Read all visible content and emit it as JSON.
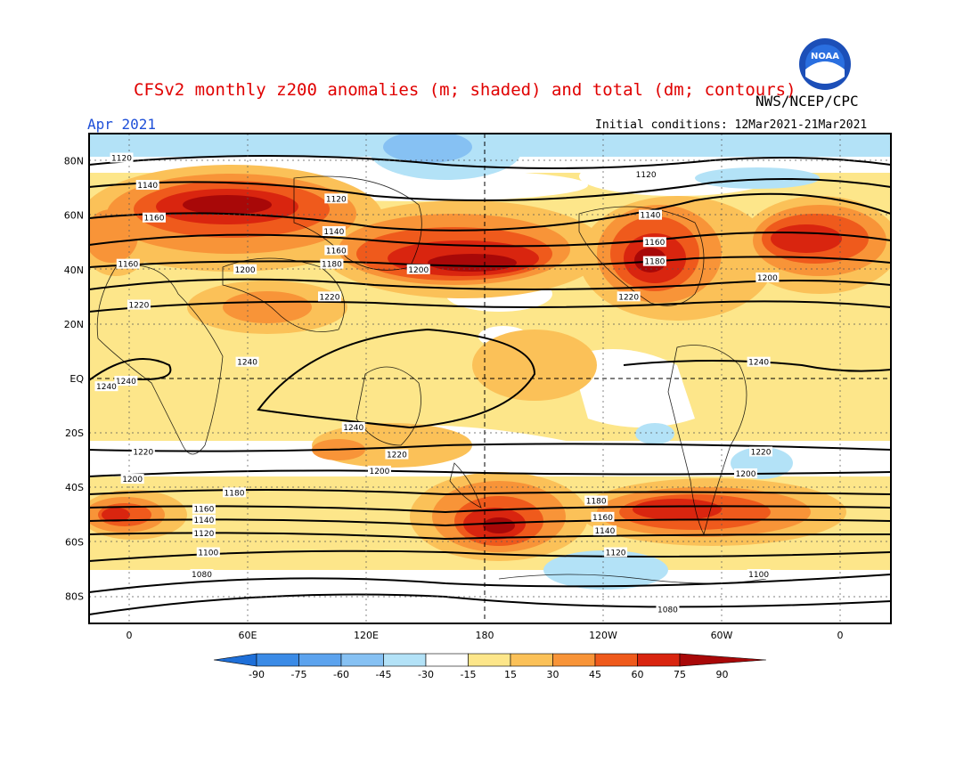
{
  "header": {
    "title": "CFSv2 monthly z200 anomalies (m; shaded) and total (dm; contours)",
    "agency": "NWS/NCEP/CPC",
    "month": "Apr 2021",
    "initial_conditions": "Initial conditions: 12Mar2021-21Mar2021"
  },
  "logo": {
    "name": "noaa-logo",
    "text": "NOAA"
  },
  "map": {
    "lat_labels": [
      "80N",
      "60N",
      "40N",
      "20N",
      "EQ",
      "20S",
      "40S",
      "60S",
      "80S"
    ],
    "lon_labels": [
      "0",
      "60E",
      "120E",
      "180",
      "120W",
      "60W",
      "0"
    ],
    "contour_labels": [
      {
        "v": "1120",
        "lon": 0,
        "lat": 81
      },
      {
        "v": "1140",
        "lon": 12,
        "lat": 71
      },
      {
        "v": "1160",
        "lon": 15,
        "lat": 59
      },
      {
        "v": "1160",
        "lon": 3,
        "lat": 42
      },
      {
        "v": "1200",
        "lon": 57,
        "lat": 40
      },
      {
        "v": "1220",
        "lon": 8,
        "lat": 27
      },
      {
        "v": "1240",
        "lon": 58,
        "lat": 6
      },
      {
        "v": "1240",
        "lon": 2,
        "lat": -1
      },
      {
        "v": "1120",
        "lon": 99,
        "lat": 66
      },
      {
        "v": "1140",
        "lon": 98,
        "lat": 54
      },
      {
        "v": "1160",
        "lon": 99,
        "lat": 47
      },
      {
        "v": "1180",
        "lon": 97,
        "lat": 42
      },
      {
        "v": "1220",
        "lon": 96,
        "lat": 30
      },
      {
        "v": "1200",
        "lon": 137,
        "lat": 40
      },
      {
        "v": "1240",
        "lon": 107,
        "lat": -18
      },
      {
        "v": "1120",
        "lon": -118,
        "lat": 75
      },
      {
        "v": "1140",
        "lon": -116,
        "lat": 60
      },
      {
        "v": "1160",
        "lon": -114,
        "lat": 50
      },
      {
        "v": "1180",
        "lon": -114,
        "lat": 43
      },
      {
        "v": "1200",
        "lon": -62,
        "lat": 37
      },
      {
        "v": "1220",
        "lon": -126,
        "lat": 30
      },
      {
        "v": "1240",
        "lon": -66,
        "lat": 6
      },
      {
        "v": "1240",
        "lon": -7,
        "lat": -3
      },
      {
        "v": "1220",
        "lon": 10,
        "lat": -27
      },
      {
        "v": "1200",
        "lon": 5,
        "lat": -37
      },
      {
        "v": "1180",
        "lon": 52,
        "lat": -42
      },
      {
        "v": "1160",
        "lon": 38,
        "lat": -48
      },
      {
        "v": "1140",
        "lon": 38,
        "lat": -52
      },
      {
        "v": "1120",
        "lon": 38,
        "lat": -57
      },
      {
        "v": "1100",
        "lon": 40,
        "lat": -64
      },
      {
        "v": "1080",
        "lon": 37,
        "lat": -72
      },
      {
        "v": "1220",
        "lon": 127,
        "lat": -28
      },
      {
        "v": "1200",
        "lon": 119,
        "lat": -34
      },
      {
        "v": "1180",
        "lon": -141,
        "lat": -45
      },
      {
        "v": "1160",
        "lon": -138,
        "lat": -51
      },
      {
        "v": "1140",
        "lon": -137,
        "lat": -56
      },
      {
        "v": "1120",
        "lon": -132,
        "lat": -64
      },
      {
        "v": "1100",
        "lon": -66,
        "lat": -72
      },
      {
        "v": "1080",
        "lon": -108,
        "lat": -85
      },
      {
        "v": "1220",
        "lon": -65,
        "lat": -27
      },
      {
        "v": "1200",
        "lon": -72,
        "lat": -35
      }
    ]
  },
  "colorbar": {
    "labels": [
      "-90",
      "-75",
      "-60",
      "-45",
      "-30",
      "-15",
      "15",
      "30",
      "45",
      "60",
      "75",
      "90"
    ],
    "colors": [
      "#1e6fd8",
      "#3b8be6",
      "#5ca3ee",
      "#86c1f3",
      "#b3e2f7",
      "#ffffff",
      "#fde68a",
      "#fbc158",
      "#f89438",
      "#ef5a1c",
      "#d9250f",
      "#a80808"
    ]
  }
}
